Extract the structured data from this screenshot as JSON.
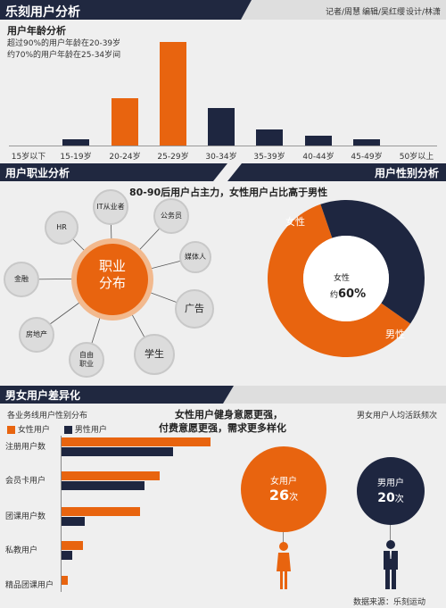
{
  "header": {
    "title": "乐刻用户分析",
    "credits": [
      "记者/周慧",
      "编辑/吴红缨",
      "设计/林潇"
    ]
  },
  "age": {
    "subtitle": "用户年龄分析",
    "note1": "超过90%的用户年龄在20-39岁",
    "note2": "约70%的用户年龄在25-34岁间"
  },
  "occupation": {
    "header": "用户职业分析",
    "center": [
      "职业",
      "分布"
    ],
    "items": [
      "HR",
      "IT从业者",
      "公务员",
      "媒体人",
      "广告",
      "学生",
      "自由\n职业",
      "房地产",
      "金融"
    ]
  },
  "gender": {
    "header": "用户性别分析",
    "headline": "80-90后用户占主力，女性用户占比高于男性",
    "female_label": "女性",
    "male_label": "男性",
    "center_line1": "女性",
    "center_prefix": "约",
    "center_value": "60%"
  },
  "diff": {
    "header": "男女用户差异化",
    "subtitle": "各业务线用户性别分布",
    "legend_female": "女性用户",
    "legend_male": "男性用户",
    "headline1": "女性用户健身意愿更强，",
    "headline2": "付费意愿更强，需求更多样化",
    "freq_title": "男女用户人均活跃频次",
    "female_circle_label": "女用户",
    "female_freq": "26",
    "male_circle_label": "男用户",
    "male_freq": "20",
    "freq_unit": "次"
  },
  "source": "数据来源：乐刻运动",
  "chart_data": [
    {
      "type": "bar",
      "categories": [
        "15岁以下",
        "15-19岁",
        "20-24岁",
        "25-29岁",
        "30-34岁",
        "35-39岁",
        "40-44岁",
        "45-49岁",
        "50岁以上"
      ],
      "values": [
        0,
        2,
        15,
        33,
        12,
        5,
        3,
        2,
        0
      ],
      "colors": [
        "#1e2640",
        "#1e2640",
        "#e8640f",
        "#e8640f",
        "#1e2640",
        "#1e2640",
        "#1e2640",
        "#1e2640",
        "#1e2640"
      ],
      "title": "用户年龄分析"
    },
    {
      "type": "pie",
      "labels": [
        "女性",
        "男性"
      ],
      "values": [
        60,
        40
      ],
      "colors": [
        "#e8640f",
        "#1e2640"
      ]
    },
    {
      "type": "bar",
      "orientation": "horizontal",
      "categories": [
        "注册用户数",
        "会员卡用户",
        "团课用户数",
        "私教用户",
        "精品团课用户"
      ],
      "series": [
        {
          "name": "女性用户",
          "color": "#e8640f",
          "values": [
            100,
            66,
            53,
            15,
            5
          ]
        },
        {
          "name": "男性用户",
          "color": "#1e2640",
          "values": [
            75,
            56,
            16,
            8,
            0
          ]
        }
      ],
      "title": "各业务线用户性别分布"
    }
  ]
}
